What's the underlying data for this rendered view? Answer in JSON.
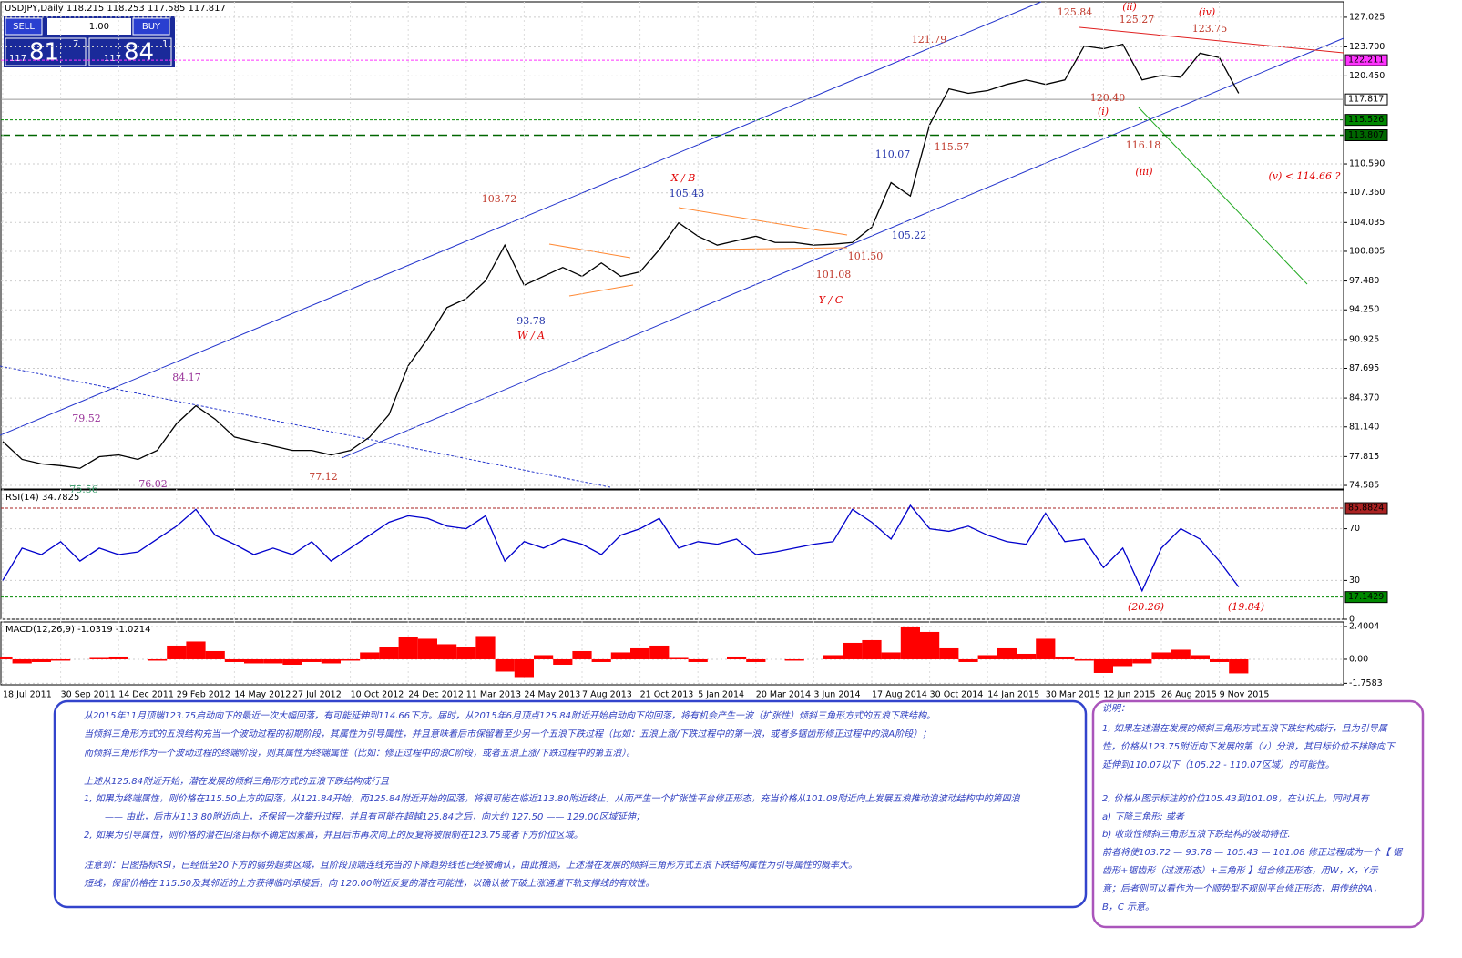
{
  "header": {
    "title": "USDJPY,Daily 118.215 118.253 117.585 117.817"
  },
  "trade_panel": {
    "sell": "SELL",
    "buy": "BUY",
    "lots": "1.00",
    "sell_price": [
      "117",
      "81",
      "7"
    ],
    "buy_price": [
      "117",
      "84",
      "1"
    ]
  },
  "chart_data": [
    {
      "type": "line",
      "color": "#000000",
      "categories": [
        "18 Jul 2011",
        null,
        null,
        "30 Sep 2011",
        null,
        null,
        "14 Dec 2011",
        null,
        null,
        "29 Feb 2012",
        null,
        null,
        "14 May 2012",
        null,
        null,
        "27 Jul 2012",
        null,
        null,
        "10 Oct 2012",
        null,
        null,
        "24 Dec 2012",
        null,
        null,
        "11 Mar 2013",
        null,
        null,
        "24 May 2013",
        null,
        null,
        "7 Aug 2013",
        null,
        null,
        "21 Oct 2013",
        null,
        null,
        "5 Jan 2014",
        null,
        null,
        "20 Mar 2014",
        null,
        null,
        "3 Jun 2014",
        null,
        null,
        "17 Aug 2014",
        null,
        null,
        "30 Oct 2014",
        null,
        null,
        "14 Jan 2015",
        null,
        null,
        "30 Mar 2015",
        null,
        null,
        "12 Jun 2015",
        null,
        null,
        "26 Aug 2015",
        null,
        null,
        "9 Nov 2015",
        null
      ],
      "values": [
        79.5,
        77.5,
        77.0,
        76.8,
        76.5,
        77.8,
        78.0,
        77.5,
        78.5,
        81.5,
        83.5,
        82.0,
        80.0,
        79.5,
        79.0,
        78.5,
        78.5,
        78.0,
        78.5,
        80.0,
        82.5,
        88.0,
        91.0,
        94.5,
        95.5,
        97.5,
        101.5,
        97.0,
        98.0,
        99.0,
        98.0,
        99.5,
        98.0,
        98.5,
        101.0,
        104.0,
        102.5,
        101.5,
        102.0,
        102.5,
        101.8,
        101.8,
        101.5,
        101.6,
        101.8,
        103.5,
        108.5,
        107.0,
        115.0,
        119.0,
        118.5,
        118.8,
        119.5,
        120.0,
        119.5,
        120.0,
        123.8,
        123.5,
        124.0,
        120.0,
        120.5,
        120.3,
        123.0,
        122.5,
        118.5
      ],
      "ylim": [
        74.18,
        128.75
      ],
      "yticks": [
        127.025,
        {
          "value": 123.7,
          "label": "123.700"
        },
        {
          "value": 120.45,
          "label": "120.450"
        },
        {
          "value": 110.59,
          "label": "110.590"
        },
        {
          "value": 107.36,
          "label": "107.360"
        },
        104.035,
        100.805,
        {
          "value": 97.48,
          "label": "97.480"
        },
        {
          "value": 94.25,
          "label": "94.250"
        },
        90.925,
        87.695,
        {
          "value": 84.37,
          "label": "84.370"
        },
        {
          "value": 81.14,
          "label": "81.140"
        },
        77.815,
        74.585
      ],
      "levels": [
        {
          "value": 122.211,
          "color": "#ff33ff"
        },
        {
          "value": 117.817,
          "color": "#999999"
        },
        {
          "value": 115.526,
          "color": "#008800"
        },
        {
          "value": 113.807,
          "color": "#006600"
        }
      ],
      "grid": true,
      "annotations": [
        {
          "text": "125.84",
          "color": "#c0392b"
        },
        {
          "text": "(ii)",
          "color": "#e00000"
        },
        {
          "text": "125.27",
          "color": "#c0392b"
        },
        {
          "text": "(iv)",
          "color": "#e00000"
        },
        {
          "text": "123.75",
          "color": "#c0392b"
        },
        {
          "text": "121.79",
          "color": "#c0392b"
        },
        {
          "text": "120.40",
          "color": "#c0392b"
        },
        {
          "text": "(i)",
          "color": "#e00000"
        },
        {
          "text": "115.57",
          "color": "#c0392b"
        },
        {
          "text": "116.18",
          "color": "#c0392b"
        },
        {
          "text": "(iii)",
          "color": "#e00000"
        },
        {
          "text": "(v) < 114.66 ?",
          "color": "#e00000"
        },
        {
          "text": "110.07",
          "color": "#2233aa"
        },
        {
          "text": "X / B",
          "color": "#e00000"
        },
        {
          "text": "105.43",
          "color": "#2233aa"
        },
        {
          "text": "103.72",
          "color": "#c0392b"
        },
        {
          "text": "105.22",
          "color": "#2233aa"
        },
        {
          "text": "101.50",
          "color": "#c0392b"
        },
        {
          "text": "101.08",
          "color": "#c0392b"
        },
        {
          "text": "Y / C",
          "color": "#e00000"
        },
        {
          "text": "93.78",
          "color": "#2233aa"
        },
        {
          "text": "W / A",
          "color": "#e00000"
        },
        {
          "text": "84.17",
          "color": "#993399"
        },
        {
          "text": "79.52",
          "color": "#993399"
        },
        {
          "text": "76.02",
          "color": "#993399"
        },
        {
          "text": "77.12",
          "color": "#c0392b"
        },
        {
          "text": "75.56",
          "color": "#339966"
        }
      ]
    },
    {
      "type": "line",
      "title": "RSI(14) 34.7825",
      "color": "#0000cc",
      "values": [
        30,
        55,
        50,
        60,
        45,
        55,
        50,
        52,
        62,
        72,
        85,
        65,
        58,
        50,
        55,
        50,
        60,
        45,
        55,
        65,
        75,
        80,
        78,
        72,
        70,
        80,
        45,
        60,
        55,
        62,
        58,
        50,
        65,
        70,
        78,
        55,
        60,
        58,
        62,
        50,
        52,
        55,
        58,
        60,
        85,
        75,
        62,
        88,
        70,
        68,
        72,
        65,
        60,
        58,
        82,
        60,
        62,
        40,
        55,
        22,
        55,
        70,
        62,
        45,
        25
      ],
      "ylim": [
        0,
        100
      ],
      "yticks": [
        70,
        30,
        0
      ],
      "levels": [
        {
          "value": 85.8824,
          "color": "#aa2222"
        },
        {
          "value": 17.1429,
          "color": "#008800"
        }
      ],
      "annotations": [
        {
          "text": "(20.26)",
          "color": "#e00000"
        },
        {
          "text": "(19.84)",
          "color": "#e00000"
        }
      ]
    },
    {
      "type": "bar",
      "title": "MACD(12,26,9) -1.0319 -1.0214",
      "color": "#ff0000",
      "values": [
        0.2,
        -0.3,
        -0.2,
        -0.1,
        0,
        0.1,
        0.2,
        0,
        -0.1,
        1.0,
        1.3,
        0.6,
        -0.2,
        -0.3,
        -0.3,
        -0.4,
        -0.2,
        -0.3,
        -0.1,
        0.5,
        0.9,
        1.6,
        1.5,
        1.1,
        0.9,
        1.7,
        -0.9,
        -1.3,
        0.3,
        -0.4,
        0.6,
        -0.2,
        0.5,
        0.8,
        1.0,
        0.1,
        -0.2,
        0,
        0.2,
        -0.2,
        0,
        -0.1,
        0,
        0.3,
        1.2,
        1.4,
        0.5,
        2.4,
        2.0,
        0.8,
        -0.2,
        0.3,
        0.8,
        0.4,
        1.5,
        0.2,
        -0.1,
        -1.0,
        -0.5,
        -0.3,
        0.5,
        0.7,
        0.3,
        -0.2,
        -1.03
      ],
      "ylim": [
        -1.867,
        2.73
      ],
      "yticks": [
        2.4004,
        {
          "value": 0,
          "label": "0.00"
        },
        -1.7583
      ]
    }
  ],
  "notes": {
    "left": [
      "从2015年11月顶端123.75启动向下的最近一次大幅回落，有可能延伸到114.66下方。届时，从2015年6月顶点125.84附近开始启动向下的回落，将有机会产生一波（扩张性）倾斜三角形方式的五浪下跌结构。",
      "当倾斜三角形方式的五浪结构充当一个波动过程的初期阶段，其属性为引导属性，并且意味着后市保留着至少另一个五浪下跌过程（比如：五浪上涨/下跌过程中的第一浪，或者多锯齿形修正过程中的浪A阶段）；",
      "而倾斜三角形作为一个波动过程的终端阶段，则其属性为终端属性（比如：修正过程中的浪C阶段，或者五浪上涨/下跌过程中的第五浪）。",
      "上述从125.84附近开始，潜在发展的倾斜三角形方式的五浪下跌结构成行且",
      "1, 如果为终端属性，则价格在115.50上方的回落，从121.84开始，而125.84附近开始的回落，将很可能在临近113.80附近终止，从而产生一个扩张性平台修正形态，充当价格从101.08附近向上发展五浪推动浪波动结构中的第四浪",
      "—— 由此，后市从113.80附近向上，还保留一次攀升过程，并且有可能在超越125.84之后，向大约 127.50 —— 129.00区域延伸；",
      "2, 如果为引导属性，则价格的潜在回落目标不确定因素高，并且后市再次向上的反复将被限制在123.75或者下方价位区域。",
      "注意到：日图指标RSI，已经低至20下方的弱势超卖区域，且阶段顶端连线充当的下降趋势线也已经被确认，由此推测，上述潜在发展的倾斜三角形方式五浪下跌结构属性为引导属性的概率大。",
      "短线，保留价格在 115.50及其邻近的上方获得临时承接后，向 120.00附近反复的潜在可能性，以确认被下破上涨通道下轨支撑线的有效性。"
    ],
    "right": [
      "说明：",
      "1, 如果左述潜在发展的倾斜三角形方式五浪下跌结构成行，且为引导属",
      "性，价格从123.75附近向下发展的第（v）分浪，其目标价位不排除向下",
      "延伸到110.07以下（105.22 - 110.07区域）的可能性。",
      "2, 价格从图示标注的价位105.43到101.08，在认识上，同时具有",
      "a) 下降三角形; 或者",
      "b) 收敛性倾斜三角形五浪下跌结构的波动特征.",
      "前者将使103.72 — 93.78 — 105.43 — 101.08 修正过程成为一个【 锯",
      "齿形+锯齿形（过渡形态）+三角形 】组合修正形态，用W，X，Y示",
      "意；后者则可以看作为一个顺势型不规则平台修正形态，用传统的A，",
      "B，C 示意。"
    ]
  }
}
